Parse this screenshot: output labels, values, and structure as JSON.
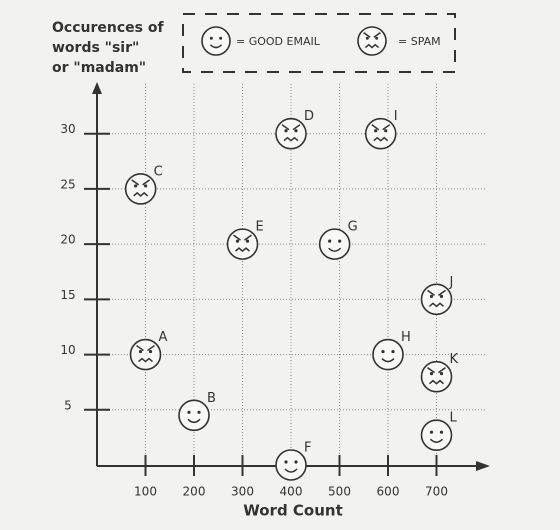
{
  "chart_data": {
    "type": "scatter",
    "y_label": [
      "Occurences of",
      "words \"sir\"",
      "or \"madam\""
    ],
    "x_label": "Word Count",
    "xlim": [
      0,
      800
    ],
    "ylim": [
      0,
      34.5
    ],
    "xticks": [
      100,
      200,
      300,
      400,
      500,
      600,
      700
    ],
    "yticks": [
      5,
      10,
      15,
      20,
      25,
      30
    ],
    "grid": true,
    "series": [
      {
        "name": "= GOOD EMAIL",
        "color": "#333333",
        "face": "happy",
        "x": [
          200,
          400,
          490,
          600,
          700
        ],
        "values": [
          4.5,
          0,
          20,
          10,
          2.7
        ],
        "point_labels": [
          "B",
          "F",
          "G",
          "H",
          "L"
        ]
      },
      {
        "name": "= SPAM",
        "color": "#333333",
        "face": "angry",
        "x": [
          100,
          90,
          400,
          300,
          585,
          700,
          700
        ],
        "values": [
          10,
          25,
          30,
          20,
          30,
          15,
          8
        ],
        "point_labels": [
          "A",
          "C",
          "D",
          "E",
          "I",
          "J",
          "K"
        ]
      }
    ]
  }
}
